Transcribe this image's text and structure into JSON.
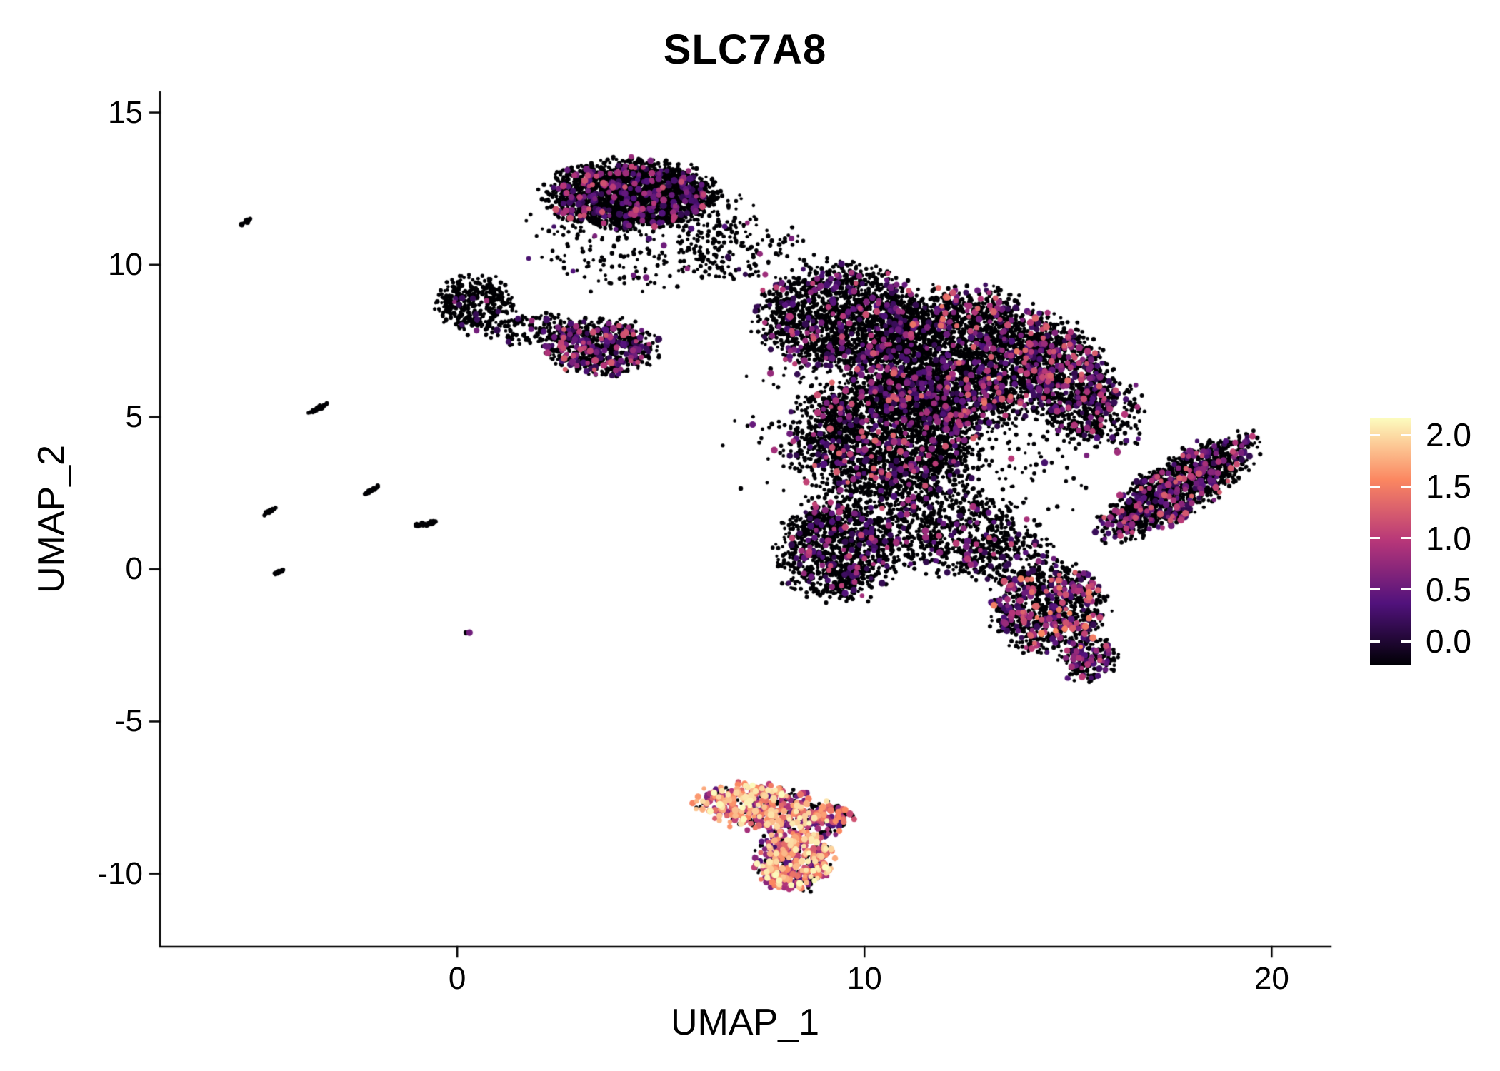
{
  "figure": {
    "background": "#ffffff"
  },
  "chart_data": {
    "type": "scatter",
    "title": "SLC7A8",
    "xlabel": "UMAP_1",
    "ylabel": "UMAP_2",
    "xlim": [
      -7.3,
      21.45
    ],
    "ylim": [
      -12.4,
      15.67
    ],
    "x_tick_values": [
      0,
      10,
      20
    ],
    "x_tick_labels": [
      "0",
      "10",
      "20"
    ],
    "y_tick_values": [
      15,
      10,
      5,
      0,
      -5,
      -10
    ],
    "y_tick_labels": [
      "15",
      "10",
      "5",
      "0",
      "-5",
      "-10"
    ],
    "grid": false,
    "axis_color": "#000000",
    "zero_color": "#000004",
    "seed": 20240612,
    "legend": {
      "position": "right",
      "range": [
        0,
        2
      ],
      "tick_values": [
        2.0,
        1.5,
        1.0,
        0.5,
        0.0
      ],
      "tick_labels": [
        "2.0",
        "1.5",
        "1.0",
        "0.5",
        "0.0"
      ],
      "colormap": "magma",
      "stops": [
        {
          "t": 0.0,
          "c": "#000004"
        },
        {
          "t": 0.25,
          "c": "#51127c"
        },
        {
          "t": 0.5,
          "c": "#b63679"
        },
        {
          "t": 0.75,
          "c": "#fb8761"
        },
        {
          "t": 1.0,
          "c": "#fcfdbf"
        }
      ]
    },
    "clusters": [
      {
        "name": "top-main",
        "cx": 4.3,
        "cy": 12.3,
        "rx": 1.9,
        "ry": 1.05,
        "rot": 0,
        "n": 2300,
        "frac": 0.1,
        "vmin": 0.3,
        "vmax": 1.2,
        "skew": 1.8
      },
      {
        "name": "top-halo",
        "cx": 4.6,
        "cy": 11.1,
        "rx": 2.6,
        "ry": 1.9,
        "rot": 0,
        "n": 330,
        "frac": 0.06,
        "vmin": 0.3,
        "vmax": 1.0,
        "skew": 1.8
      },
      {
        "name": "top-bridge-right",
        "cx": 7.0,
        "cy": 10.6,
        "rx": 1.5,
        "ry": 1.1,
        "rot": 0,
        "n": 140,
        "frac": 0.05,
        "vmin": 0.3,
        "vmax": 0.9,
        "skew": 1.8
      },
      {
        "name": "left-small",
        "cx": 0.4,
        "cy": 8.7,
        "rx": 0.95,
        "ry": 0.85,
        "rot": 0,
        "n": 380,
        "frac": 0.04,
        "vmin": 0.3,
        "vmax": 0.9,
        "skew": 1.8
      },
      {
        "name": "left-bridge",
        "cx": 1.9,
        "cy": 7.9,
        "rx": 1.3,
        "ry": 0.45,
        "rot": 8,
        "n": 130,
        "frac": 0.08,
        "vmin": 0.3,
        "vmax": 1.0,
        "skew": 1.8
      },
      {
        "name": "mid-blob",
        "cx": 3.5,
        "cy": 7.3,
        "rx": 1.25,
        "ry": 0.85,
        "rot": 0,
        "n": 650,
        "frac": 0.22,
        "vmin": 0.3,
        "vmax": 1.3,
        "skew": 1.6
      },
      {
        "name": "main-upper-left",
        "cx": 9.4,
        "cy": 8.3,
        "rx": 1.9,
        "ry": 1.6,
        "rot": 0,
        "n": 1700,
        "frac": 0.1,
        "vmin": 0.3,
        "vmax": 1.2,
        "skew": 1.9
      },
      {
        "name": "main-upper-right",
        "cx": 12.4,
        "cy": 6.9,
        "rx": 2.3,
        "ry": 2.1,
        "rot": 0,
        "n": 3000,
        "frac": 0.13,
        "vmin": 0.3,
        "vmax": 1.4,
        "skew": 2.0
      },
      {
        "name": "main-center",
        "cx": 10.6,
        "cy": 4.3,
        "rx": 2.1,
        "ry": 2.0,
        "rot": 0,
        "n": 2400,
        "frac": 0.1,
        "vmin": 0.3,
        "vmax": 1.3,
        "skew": 2.0
      },
      {
        "name": "main-lower-left",
        "cx": 9.3,
        "cy": 0.6,
        "rx": 1.35,
        "ry": 1.6,
        "rot": 0,
        "n": 1100,
        "frac": 0.1,
        "vmin": 0.3,
        "vmax": 1.1,
        "skew": 1.8
      },
      {
        "name": "main-lower-sparse",
        "cx": 12.0,
        "cy": 1.3,
        "rx": 1.7,
        "ry": 1.4,
        "rot": 0,
        "n": 650,
        "frac": 0.1,
        "vmin": 0.3,
        "vmax": 1.1,
        "skew": 1.8
      },
      {
        "name": "main-halo",
        "cx": 11.3,
        "cy": 4.6,
        "rx": 4.1,
        "ry": 3.6,
        "rot": 0,
        "n": 600,
        "frac": 0.08,
        "vmin": 0.3,
        "vmax": 1.1,
        "skew": 1.8
      },
      {
        "name": "main-right-arm",
        "cx": 15.0,
        "cy": 6.2,
        "rx": 1.0,
        "ry": 1.9,
        "rot": 15,
        "n": 900,
        "frac": 0.15,
        "vmin": 0.3,
        "vmax": 1.3,
        "skew": 1.8
      },
      {
        "name": "arm-wing-gap",
        "cx": 16.2,
        "cy": 5.0,
        "rx": 0.7,
        "ry": 1.2,
        "rot": 0,
        "n": 120,
        "frac": 0.1,
        "vmin": 0.3,
        "vmax": 1.1,
        "skew": 1.8
      },
      {
        "name": "right-wing",
        "cx": 17.7,
        "cy": 2.7,
        "rx": 2.2,
        "ry": 0.8,
        "rot": 42,
        "n": 1300,
        "frac": 0.18,
        "vmin": 0.3,
        "vmax": 1.3,
        "skew": 1.6
      },
      {
        "name": "lobe-neck",
        "cx": 13.5,
        "cy": 0.3,
        "rx": 1.2,
        "ry": 0.9,
        "rot": 0,
        "n": 220,
        "frac": 0.12,
        "vmin": 0.3,
        "vmax": 1.2,
        "skew": 1.8
      },
      {
        "name": "lobe-bottom-right",
        "cx": 14.5,
        "cy": -1.3,
        "rx": 1.3,
        "ry": 1.4,
        "rot": -20,
        "n": 850,
        "frac": 0.25,
        "vmin": 0.3,
        "vmax": 1.5,
        "skew": 1.5
      },
      {
        "name": "lobe-tail",
        "cx": 15.5,
        "cy": -3.0,
        "rx": 0.65,
        "ry": 0.7,
        "rot": -35,
        "n": 200,
        "frac": 0.2,
        "vmin": 0.3,
        "vmax": 1.2,
        "skew": 1.6
      },
      {
        "name": "bottom-express-upper",
        "cx": 7.5,
        "cy": -7.8,
        "rx": 1.5,
        "ry": 0.7,
        "rot": -8,
        "n": 460,
        "frac": 0.72,
        "vmin": 0.4,
        "vmax": 2.0,
        "skew": 0.85
      },
      {
        "name": "bottom-express-lower",
        "cx": 8.3,
        "cy": -9.5,
        "rx": 0.9,
        "ry": 0.95,
        "rot": 0,
        "n": 430,
        "frac": 0.72,
        "vmin": 0.4,
        "vmax": 2.0,
        "skew": 0.85
      },
      {
        "name": "bottom-express-tip",
        "cx": 9.1,
        "cy": -8.2,
        "rx": 0.55,
        "ry": 0.5,
        "rot": 0,
        "n": 110,
        "frac": 0.55,
        "vmin": 0.4,
        "vmax": 1.6,
        "skew": 1.0
      },
      {
        "name": "streak-1",
        "cx": -5.2,
        "cy": 11.4,
        "rx": 0.18,
        "ry": 0.05,
        "rot": 40,
        "n": 18,
        "frac": 0,
        "vmin": 0,
        "vmax": 0,
        "skew": 1
      },
      {
        "name": "streak-2",
        "cx": -3.4,
        "cy": 5.3,
        "rx": 0.3,
        "ry": 0.05,
        "rot": 38,
        "n": 35,
        "frac": 0,
        "vmin": 0,
        "vmax": 0,
        "skew": 1
      },
      {
        "name": "streak-3",
        "cx": -2.1,
        "cy": 2.6,
        "rx": 0.22,
        "ry": 0.05,
        "rot": 38,
        "n": 28,
        "frac": 0.05,
        "vmin": 0.3,
        "vmax": 0.8,
        "skew": 1
      },
      {
        "name": "streak-4",
        "cx": -4.6,
        "cy": 1.9,
        "rx": 0.22,
        "ry": 0.05,
        "rot": 38,
        "n": 26,
        "frac": 0,
        "vmin": 0,
        "vmax": 0,
        "skew": 1
      },
      {
        "name": "streak-5",
        "cx": -0.75,
        "cy": 1.5,
        "rx": 0.32,
        "ry": 0.06,
        "rot": 12,
        "n": 40,
        "frac": 0,
        "vmin": 0,
        "vmax": 0,
        "skew": 1
      },
      {
        "name": "streak-6",
        "cx": -4.4,
        "cy": -0.1,
        "rx": 0.15,
        "ry": 0.05,
        "rot": 38,
        "n": 16,
        "frac": 0,
        "vmin": 0,
        "vmax": 0,
        "skew": 1
      },
      {
        "name": "dot-left-low",
        "cx": 0.25,
        "cy": -2.1,
        "rx": 0.07,
        "ry": 0.06,
        "rot": 0,
        "n": 5,
        "frac": 0.2,
        "vmin": 0.4,
        "vmax": 0.9,
        "skew": 1
      }
    ]
  }
}
